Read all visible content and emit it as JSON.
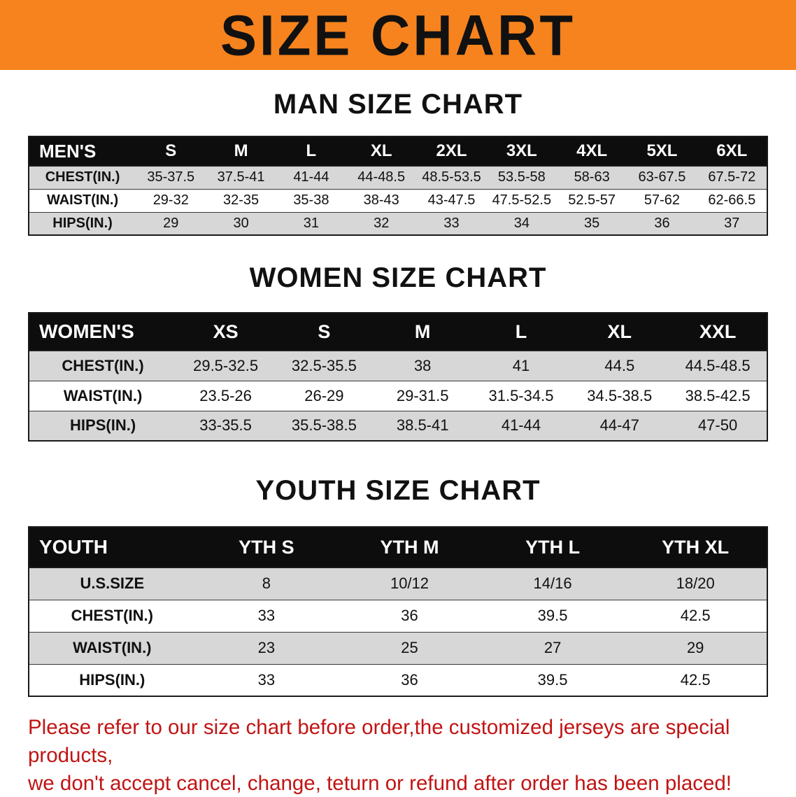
{
  "banner": {
    "title": "SIZE CHART",
    "bg_color": "#f6831e",
    "text_color": "#111111"
  },
  "colors": {
    "header_row_bg": "#0d0d0d",
    "stripe_gray": "#d7d7d7",
    "disclaimer_red": "#c11414"
  },
  "sections": [
    {
      "heading": "MAN SIZE CHART",
      "table": {
        "header": [
          "MEN'S",
          "S",
          "M",
          "L",
          "XL",
          "2XL",
          "3XL",
          "4XL",
          "5XL",
          "6XL"
        ],
        "rows": [
          [
            "CHEST(IN.)",
            "35-37.5",
            "37.5-41",
            "41-44",
            "44-48.5",
            "48.5-53.5",
            "53.5-58",
            "58-63",
            "63-67.5",
            "67.5-72"
          ],
          [
            "WAIST(IN.)",
            "29-32",
            "32-35",
            "35-38",
            "38-43",
            "43-47.5",
            "47.5-52.5",
            "52.5-57",
            "57-62",
            "62-66.5"
          ],
          [
            "HIPS(IN.)",
            "29",
            "30",
            "31",
            "32",
            "33",
            "34",
            "35",
            "36",
            "37"
          ]
        ]
      }
    },
    {
      "heading": "WOMEN SIZE CHART",
      "table": {
        "header": [
          "WOMEN'S",
          "XS",
          "S",
          "M",
          "L",
          "XL",
          "XXL"
        ],
        "rows": [
          [
            "CHEST(IN.)",
            "29.5-32.5",
            "32.5-35.5",
            "38",
            "41",
            "44.5",
            "44.5-48.5"
          ],
          [
            "WAIST(IN.)",
            "23.5-26",
            "26-29",
            "29-31.5",
            "31.5-34.5",
            "34.5-38.5",
            "38.5-42.5"
          ],
          [
            "HIPS(IN.)",
            "33-35.5",
            "35.5-38.5",
            "38.5-41",
            "41-44",
            "44-47",
            "47-50"
          ]
        ]
      }
    },
    {
      "heading": "YOUTH SIZE CHART",
      "table": {
        "header": [
          "YOUTH",
          "YTH S",
          "YTH M",
          "YTH L",
          "YTH XL"
        ],
        "rows": [
          [
            "U.S.SIZE",
            "8",
            "10/12",
            "14/16",
            "18/20"
          ],
          [
            "CHEST(IN.)",
            "33",
            "36",
            "39.5",
            "42.5"
          ],
          [
            "WAIST(IN.)",
            "23",
            "25",
            "27",
            "29"
          ],
          [
            "HIPS(IN.)",
            "33",
            "36",
            "39.5",
            "42.5"
          ]
        ]
      }
    }
  ],
  "disclaimer": {
    "line1": "Please refer to our size chart before order,the customized jerseys are special products,",
    "line2": "we don't accept cancel, change, teturn or refund after order has been placed!"
  }
}
